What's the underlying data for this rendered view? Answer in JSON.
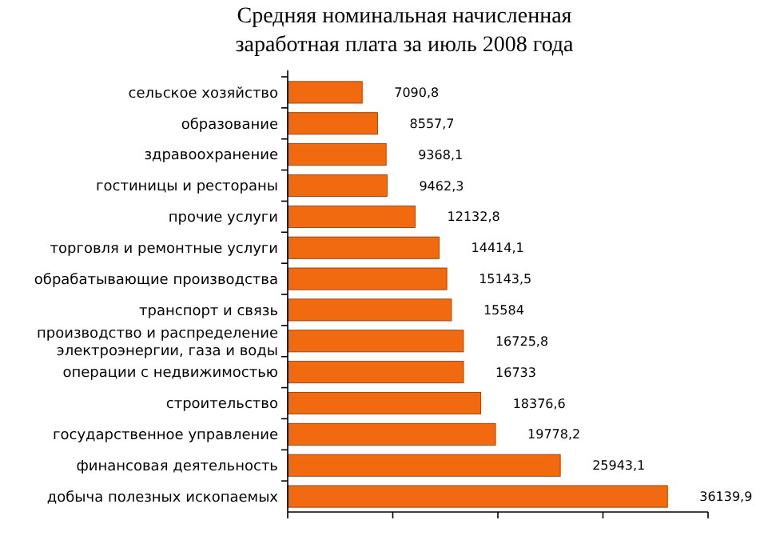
{
  "chart_data": {
    "type": "bar",
    "orientation": "horizontal",
    "title": "Средняя номинальная начисленная заработная плата за июль 2008 года",
    "categories": [
      "сельское хозяйство",
      "образование",
      "здравоохранение",
      "гостиницы и рестораны",
      "прочие услуги",
      "торговля и ремонтные услуги",
      "обрабатывающие производства",
      "транспорт и связь",
      "производство и распределение электроэнергии, газа и воды",
      "операции с недвижимостью",
      "строительство",
      "государственное управление",
      "финансовая деятельность",
      "добыча полезных ископаемых"
    ],
    "values": [
      7090.8,
      8557.7,
      9368.1,
      9462.3,
      12132.8,
      14414.1,
      15143.5,
      15584,
      16725.8,
      16733,
      18376.6,
      19778.2,
      25943.1,
      36139.9
    ],
    "value_labels": [
      "7090,8",
      "8557,7",
      "9368,1",
      "9462,3",
      "12132,8",
      "14414,1",
      "15143,5",
      "15584",
      "16725,8",
      "16733",
      "18376,6",
      "19778,2",
      "25943,1",
      "36139,9"
    ],
    "color": "#f26a10",
    "xlim": [
      0,
      40000
    ],
    "xticks": [
      {
        "value": 0,
        "label": null
      },
      {
        "value": 10000,
        "label": null
      },
      {
        "value": 20000,
        "label": null
      },
      {
        "value": 30000,
        "label": null
      },
      {
        "value": 40000,
        "label": null
      }
    ],
    "tick_labels": "y",
    "grid": false
  }
}
